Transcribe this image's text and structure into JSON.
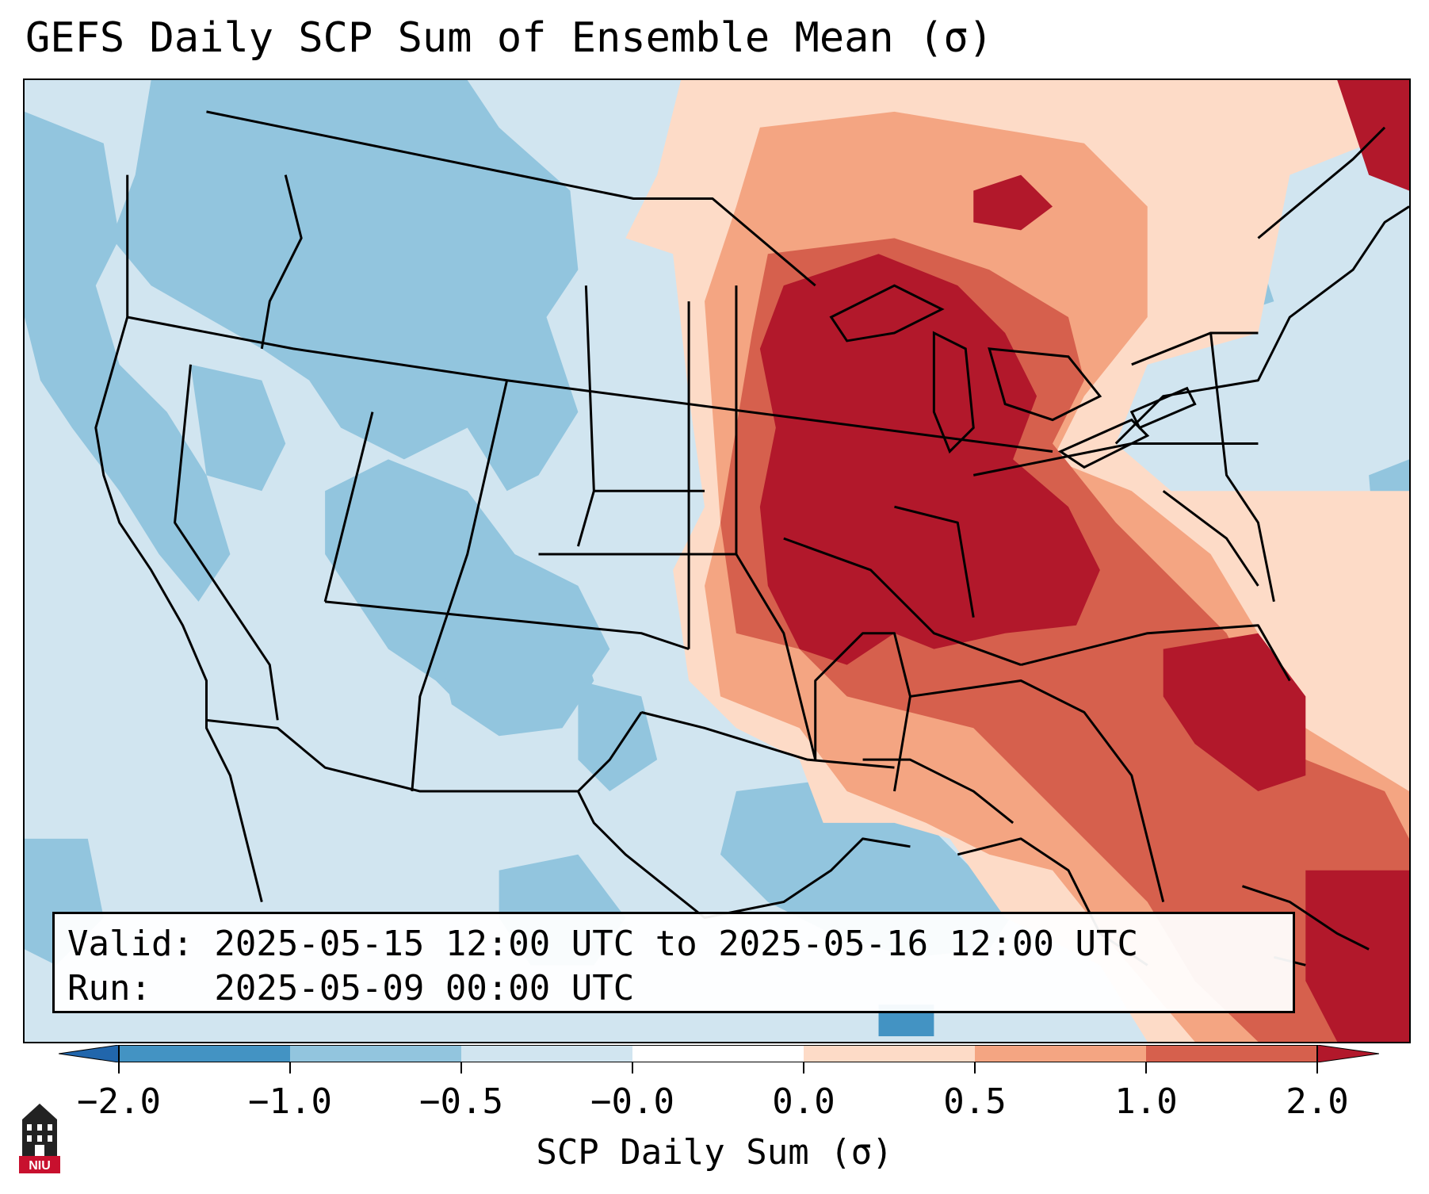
{
  "title": "GEFS Daily SCP Sum of Ensemble Mean (σ)",
  "info": {
    "valid": "Valid: 2025-05-15 12:00 UTC to 2025-05-16 12:00 UTC",
    "run": "Run:   2025-05-09 00:00 UTC"
  },
  "colorbar": {
    "label": "SCP Daily Sum (σ)",
    "ticks": [
      "−2.0",
      "−1.0",
      "−0.5",
      "−0.0",
      "0.0",
      "0.5",
      "1.0",
      "2.0"
    ],
    "colors": [
      "#2166ac",
      "#4393c3",
      "#92c5de",
      "#d1e5f0",
      "#ffffff",
      "#fddbc7",
      "#f4a582",
      "#d6604d",
      "#b2182b"
    ]
  },
  "logo": {
    "text": "NIU",
    "icon": "university-tower-logo"
  }
}
